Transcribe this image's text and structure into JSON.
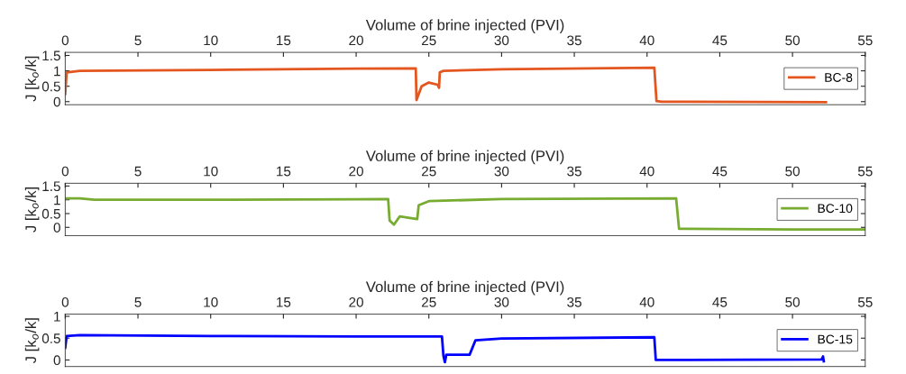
{
  "chart_data": [
    {
      "type": "line",
      "xlabel": "Volume of brine injected (PVI)",
      "ylabel": "J [k$_{o}$/k]",
      "xlim": [
        0,
        55
      ],
      "xticks": [
        0,
        5,
        10,
        15,
        20,
        25,
        30,
        35,
        40,
        45,
        50,
        55
      ],
      "ylim": [
        -0.1,
        1.6
      ],
      "yticks": [
        0,
        0.5,
        1,
        1.5
      ],
      "legend": "right",
      "grid": false,
      "series": [
        {
          "name": "BC-8",
          "color": "#e4561f",
          "x": [
            0,
            0.1,
            1,
            10,
            20,
            24.1,
            24.15,
            24.5,
            25,
            25.6,
            25.7,
            25.75,
            26,
            30,
            40.5,
            40.65,
            41,
            52.3
          ],
          "values": [
            0.25,
            0.95,
            1.0,
            1.03,
            1.07,
            1.08,
            0.05,
            0.5,
            0.62,
            0.55,
            0.45,
            0.95,
            1.0,
            1.05,
            1.1,
            0.02,
            0,
            -0.02
          ]
        }
      ]
    },
    {
      "type": "line",
      "xlabel": "Volume of brine injected (PVI)",
      "ylabel": "J [k$_{o}$/k]",
      "xlim": [
        0,
        55
      ],
      "xticks": [
        0,
        5,
        10,
        15,
        20,
        25,
        30,
        35,
        40,
        45,
        50,
        55
      ],
      "ylim": [
        -0.3,
        1.6
      ],
      "yticks": [
        0,
        0.5,
        1,
        1.5
      ],
      "legend": "right",
      "grid": false,
      "series": [
        {
          "name": "BC-10",
          "color": "#77ac30",
          "x": [
            0,
            1,
            2,
            10,
            20,
            22.2,
            22.3,
            22.6,
            23,
            24.2,
            24.3,
            25,
            30,
            42,
            42.2,
            50,
            55
          ],
          "values": [
            1.05,
            1.05,
            1.0,
            1.0,
            1.02,
            1.03,
            0.25,
            0.1,
            0.4,
            0.3,
            0.8,
            0.95,
            1.03,
            1.05,
            -0.05,
            -0.08,
            -0.08
          ]
        }
      ]
    },
    {
      "type": "line",
      "xlabel": "Volume of brine injected (PVI)",
      "ylabel": "J [k$_{o}$/k]",
      "xlim": [
        0,
        55
      ],
      "xticks": [
        0,
        5,
        10,
        15,
        20,
        25,
        30,
        35,
        40,
        45,
        50,
        55
      ],
      "ylim": [
        -0.15,
        1.05
      ],
      "yticks": [
        0,
        0.5,
        1
      ],
      "legend": "right",
      "grid": false,
      "series": [
        {
          "name": "BC-15",
          "color": "#0000ff",
          "x": [
            0,
            0.1,
            1,
            10,
            20,
            25.9,
            26,
            26.1,
            26.2,
            27.8,
            28.2,
            30,
            40.5,
            40.6,
            52,
            52.1,
            52.15
          ],
          "values": [
            0.28,
            0.55,
            0.57,
            0.55,
            0.54,
            0.54,
            0.1,
            -0.05,
            0.12,
            0.12,
            0.45,
            0.49,
            0.52,
            0.0,
            0.01,
            0.08,
            -0.03
          ]
        }
      ]
    }
  ]
}
